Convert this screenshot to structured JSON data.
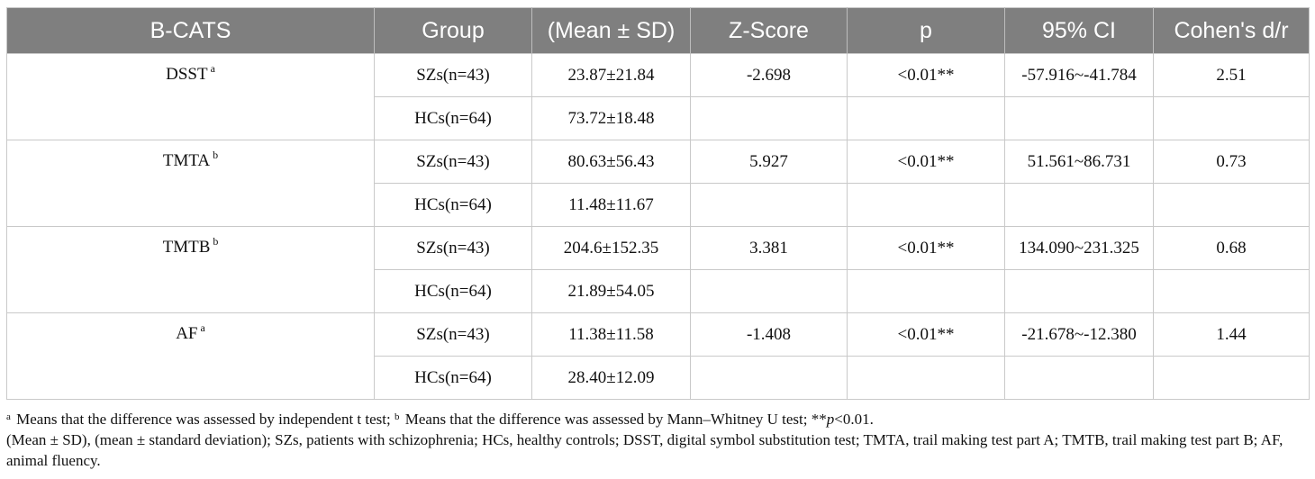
{
  "table": {
    "headers": {
      "test": "B-CATS",
      "group": "Group",
      "mean_sd": "(Mean ± SD)",
      "z": "Z-Score",
      "p": "p",
      "ci": "95% CI",
      "d": "Cohen's d/r"
    },
    "rows": [
      {
        "test": "DSST",
        "sup": "a",
        "szs": {
          "group": "SZs(n=43)",
          "mean_sd": "23.87±21.84",
          "z": "-2.698",
          "p": "<0.01**",
          "ci": "-57.916~-41.784",
          "d": "2.51"
        },
        "hcs": {
          "group": "HCs(n=64)",
          "mean_sd": "73.72±18.48"
        }
      },
      {
        "test": "TMTA",
        "sup": "b",
        "szs": {
          "group": "SZs(n=43)",
          "mean_sd": "80.63±56.43",
          "z": "5.927",
          "p": "<0.01**",
          "ci": "51.561~86.731",
          "d": "0.73"
        },
        "hcs": {
          "group": "HCs(n=64)",
          "mean_sd": "11.48±11.67"
        }
      },
      {
        "test": "TMTB",
        "sup": "b",
        "szs": {
          "group": "SZs(n=43)",
          "mean_sd": "204.6±152.35",
          "z": "3.381",
          "p": "<0.01**",
          "ci": "134.090~231.325",
          "d": "0.68"
        },
        "hcs": {
          "group": "HCs(n=64)",
          "mean_sd": "21.89±54.05"
        }
      },
      {
        "test": "AF",
        "sup": "a",
        "szs": {
          "group": "SZs(n=43)",
          "mean_sd": "11.38±11.58",
          "z": "-1.408",
          "p": "<0.01**",
          "ci": "-21.678~-12.380",
          "d": "1.44"
        },
        "hcs": {
          "group": "HCs(n=64)",
          "mean_sd": "28.40±12.09"
        }
      }
    ]
  },
  "footnotes": {
    "line1": {
      "sup_a": "a",
      "text_a": " Means that the difference was assessed by independent t test; ",
      "sup_b": "b",
      "text_b": " Means that the difference was assessed by Mann–Whitney U test; **",
      "p_italic": "p",
      "tail": "<0.01."
    },
    "line2": "(Mean ± SD), (mean ± standard deviation); SZs, patients with schizophrenia; HCs, healthy controls; DSST, digital symbol substitution test; TMTA, trail making test part A; TMTB, trail making test part B; AF, animal fluency."
  }
}
